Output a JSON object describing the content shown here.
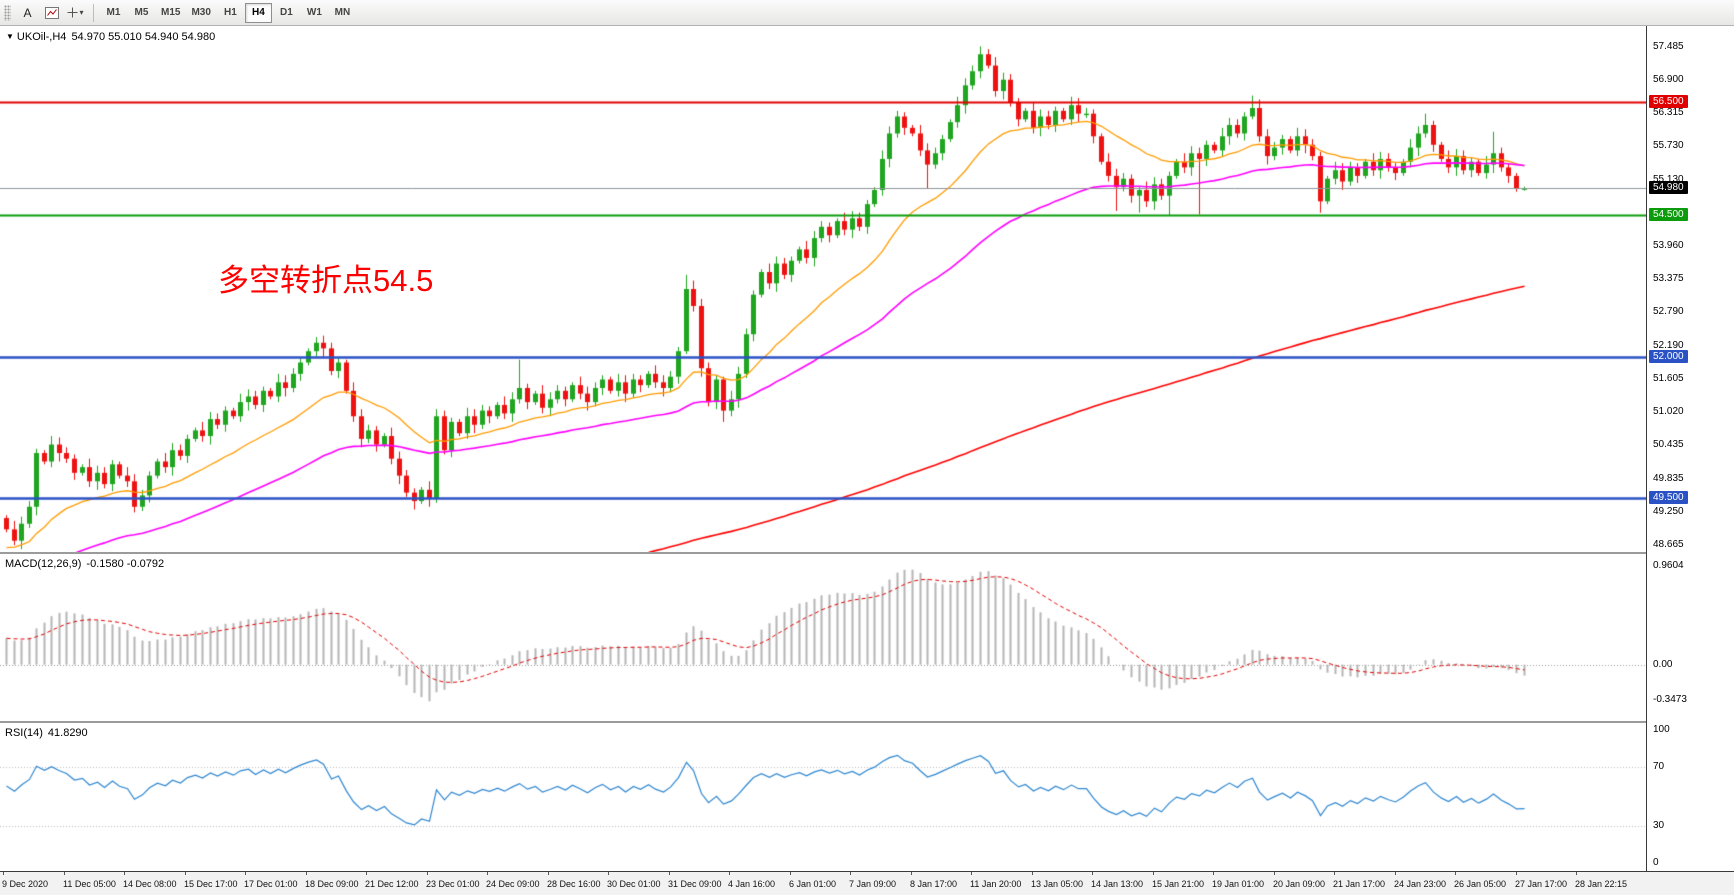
{
  "toolbar": {
    "text_tool": "A",
    "timeframes": [
      "M1",
      "M5",
      "M15",
      "M30",
      "H1",
      "H4",
      "D1",
      "W1",
      "MN"
    ],
    "active_timeframe": "H4"
  },
  "chart": {
    "title": "UKOil-,H4",
    "ohlc": "54.970 55.010 54.940 54.980"
  },
  "colors": {
    "up": "#1fa51f",
    "down": "#ee1111",
    "ma_fast": "#ff9b00",
    "ma_mid": "#ff00ff",
    "ma_slow": "#ff0000",
    "macd_hist": "#b5b5b5",
    "macd_signal": "#e00000",
    "rsi_line": "#2e86d0",
    "current_price_line": "#8f9399",
    "annotation": "#ff0000"
  },
  "price_axis": [
    {
      "text": "57.485",
      "price": 57.485
    },
    {
      "text": "56.900",
      "price": 56.9
    },
    {
      "text": "56.500",
      "price": 56.5,
      "badge": "#e00000"
    },
    {
      "text": "56.315",
      "price": 56.315
    },
    {
      "text": "55.730",
      "price": 55.73
    },
    {
      "text": "55.130",
      "price": 55.13
    },
    {
      "text": "54.980",
      "price": 54.98,
      "badge": "#000000"
    },
    {
      "text": "54.500",
      "price": 54.5,
      "badge": "#0b9b0b"
    },
    {
      "text": "53.960",
      "price": 53.96
    },
    {
      "text": "53.375",
      "price": 53.375
    },
    {
      "text": "52.790",
      "price": 52.79
    },
    {
      "text": "52.190",
      "price": 52.19
    },
    {
      "text": "52.000",
      "price": 52.0,
      "badge": "#2a52c5"
    },
    {
      "text": "51.605",
      "price": 51.605
    },
    {
      "text": "51.020",
      "price": 51.02
    },
    {
      "text": "50.435",
      "price": 50.435
    },
    {
      "text": "49.835",
      "price": 49.835
    },
    {
      "text": "49.500",
      "price": 49.5,
      "badge": "#2a52c5"
    },
    {
      "text": "49.250",
      "price": 49.25
    },
    {
      "text": "48.665",
      "price": 48.665
    }
  ],
  "macd_panel": {
    "label": "MACD(12,26,9)",
    "values": "-0.1580 -0.0792",
    "axis": [
      {
        "text": "0.9604",
        "value": 0.9604
      },
      {
        "text": "0.00",
        "value": 0
      },
      {
        "text": "-0.3473",
        "value": -0.3473
      }
    ]
  },
  "rsi_panel": {
    "label": "RSI(14)",
    "value": "41.8290",
    "axis": [
      {
        "text": "100",
        "value": 100
      },
      {
        "text": "70",
        "value": 70
      },
      {
        "text": "30",
        "value": 30
      },
      {
        "text": "0",
        "value": 0
      }
    ]
  },
  "time_axis": [
    "9 Dec 2020",
    "11 Dec 05:00",
    "14 Dec 08:00",
    "15 Dec 17:00",
    "17 Dec 01:00",
    "18 Dec 09:00",
    "21 Dec 12:00",
    "23 Dec 01:00",
    "24 Dec 09:00",
    "28 Dec 16:00",
    "30 Dec 01:00",
    "31 Dec 09:00",
    "4 Jan 16:00",
    "6 Jan 01:00",
    "7 Jan 09:00",
    "8 Jan 17:00",
    "11 Jan 20:00",
    "13 Jan 05:00",
    "14 Jan 13:00",
    "15 Jan 21:00",
    "19 Jan 01:00",
    "20 Jan 09:00",
    "21 Jan 17:00",
    "24 Jan 23:00",
    "26 Jan 05:00",
    "27 Jan 17:00",
    "28 Jan 22:15"
  ],
  "chart_data": [
    {
      "type": "candlestick",
      "symbol": "UKOil-",
      "timeframe": "H4",
      "ylim": [
        48.55,
        57.85
      ],
      "bars_per_time_label": 8,
      "first_open": 49.15,
      "closes": [
        48.95,
        48.75,
        49.05,
        49.35,
        50.3,
        50.15,
        50.45,
        50.3,
        50.2,
        49.95,
        50.05,
        49.8,
        49.95,
        49.75,
        50.1,
        49.9,
        49.8,
        49.35,
        49.55,
        49.9,
        50.15,
        50.05,
        50.35,
        50.25,
        50.55,
        50.7,
        50.6,
        50.9,
        50.8,
        51.05,
        50.95,
        51.2,
        51.3,
        51.15,
        51.4,
        51.3,
        51.55,
        51.45,
        51.7,
        51.9,
        52.1,
        52.25,
        52.15,
        51.75,
        51.9,
        51.4,
        50.95,
        50.55,
        50.7,
        50.45,
        50.6,
        50.2,
        49.9,
        49.6,
        49.45,
        49.65,
        49.5,
        50.95,
        50.35,
        50.85,
        50.65,
        50.95,
        50.8,
        51.05,
        50.95,
        51.15,
        51.0,
        51.25,
        51.45,
        51.2,
        51.35,
        51.1,
        51.25,
        51.4,
        51.25,
        51.5,
        51.35,
        51.2,
        51.45,
        51.6,
        51.4,
        51.55,
        51.35,
        51.6,
        51.5,
        51.7,
        51.55,
        51.45,
        51.65,
        52.1,
        53.2,
        52.9,
        51.8,
        51.2,
        51.6,
        51.05,
        51.25,
        51.7,
        52.4,
        53.1,
        53.5,
        53.3,
        53.65,
        53.45,
        53.7,
        53.9,
        53.75,
        54.1,
        54.3,
        54.15,
        54.4,
        54.25,
        54.45,
        54.3,
        54.7,
        54.95,
        55.5,
        55.95,
        56.25,
        56.05,
        55.95,
        55.65,
        55.4,
        55.6,
        55.85,
        56.15,
        56.45,
        56.8,
        57.05,
        57.35,
        57.15,
        56.7,
        56.9,
        56.5,
        56.2,
        56.35,
        56.05,
        56.25,
        56.1,
        56.35,
        56.2,
        56.45,
        56.3,
        56.3,
        55.9,
        55.45,
        55.2,
        55.0,
        55.15,
        54.85,
        54.95,
        54.75,
        55.05,
        54.85,
        55.2,
        55.45,
        55.35,
        55.6,
        55.5,
        55.75,
        55.65,
        55.9,
        56.1,
        55.95,
        56.25,
        56.4,
        55.9,
        55.55,
        55.7,
        55.85,
        55.65,
        55.9,
        55.75,
        55.55,
        54.75,
        55.15,
        55.3,
        55.1,
        55.35,
        55.2,
        55.45,
        55.3,
        55.5,
        55.35,
        55.25,
        55.45,
        55.7,
        55.95,
        56.1,
        55.75,
        55.5,
        55.35,
        55.55,
        55.3,
        55.45,
        55.25,
        55.4,
        55.6,
        55.35,
        55.2,
        54.97,
        54.98
      ],
      "wick_overrides": {
        "1": {
          "l": 48.67
        },
        "4": {
          "l": 49.2
        },
        "17": {
          "l": 49.25
        },
        "41": {
          "h": 52.35
        },
        "54": {
          "l": 49.3
        },
        "56": {
          "l": 49.35
        },
        "57": {
          "l": 49.42
        },
        "68": {
          "h": 51.95
        },
        "90": {
          "h": 53.45
        },
        "95": {
          "l": 50.85
        },
        "118": {
          "h": 56.35
        },
        "122": {
          "l": 54.97
        },
        "129": {
          "h": 57.49
        },
        "130": {
          "h": 57.44
        },
        "147": {
          "l": 54.58
        },
        "150": {
          "l": 54.55
        },
        "154": {
          "l": 54.5
        },
        "158": {
          "l": 54.52
        },
        "165": {
          "h": 56.62
        },
        "174": {
          "l": 54.55
        },
        "188": {
          "h": 56.3
        },
        "197": {
          "h": 55.98
        },
        "201": {
          "h": 55.01,
          "l": 54.94
        }
      },
      "overlays": {
        "horizontal_lines": [
          {
            "price": 56.5,
            "color": "#e00000",
            "width": 2
          },
          {
            "price": 54.5,
            "color": "#0b9b0b",
            "width": 2
          },
          {
            "price": 52.0,
            "color": "#2a52c5",
            "width": 2.5
          },
          {
            "price": 49.5,
            "color": "#2a52c5",
            "width": 2.5
          },
          {
            "price": 54.98,
            "color": "#8f9399",
            "width": 1,
            "role": "current-price"
          }
        ],
        "moving_averages": [
          {
            "type": "EMA",
            "period": 21,
            "color": "#ff9b00",
            "width": 1.3
          },
          {
            "type": "EMA",
            "period": 55,
            "color": "#ff00ff",
            "width": 1.6
          },
          {
            "type": "SMA",
            "period": 200,
            "color": "#ff0000",
            "width": 1.6
          }
        ],
        "annotation": {
          "text": "多空转折点54.5",
          "price": 53.45,
          "bar_index": 28,
          "color": "#ff0000"
        }
      }
    },
    {
      "type": "macd",
      "name": "MACD(12,26,9)",
      "params": [
        12,
        26,
        9
      ],
      "current_macd": -0.158,
      "current_signal": -0.0792,
      "ylim": [
        -0.55,
        1.08
      ],
      "axis_marks": [
        0.9604,
        0.0,
        -0.3473
      ],
      "derived_from": "chart_data.0.closes"
    },
    {
      "type": "rsi",
      "name": "RSI(14)",
      "period": 14,
      "current": 41.829,
      "levels": [
        70,
        30
      ],
      "ylim": [
        0,
        100
      ],
      "derived_from": "chart_data.0.closes"
    }
  ]
}
